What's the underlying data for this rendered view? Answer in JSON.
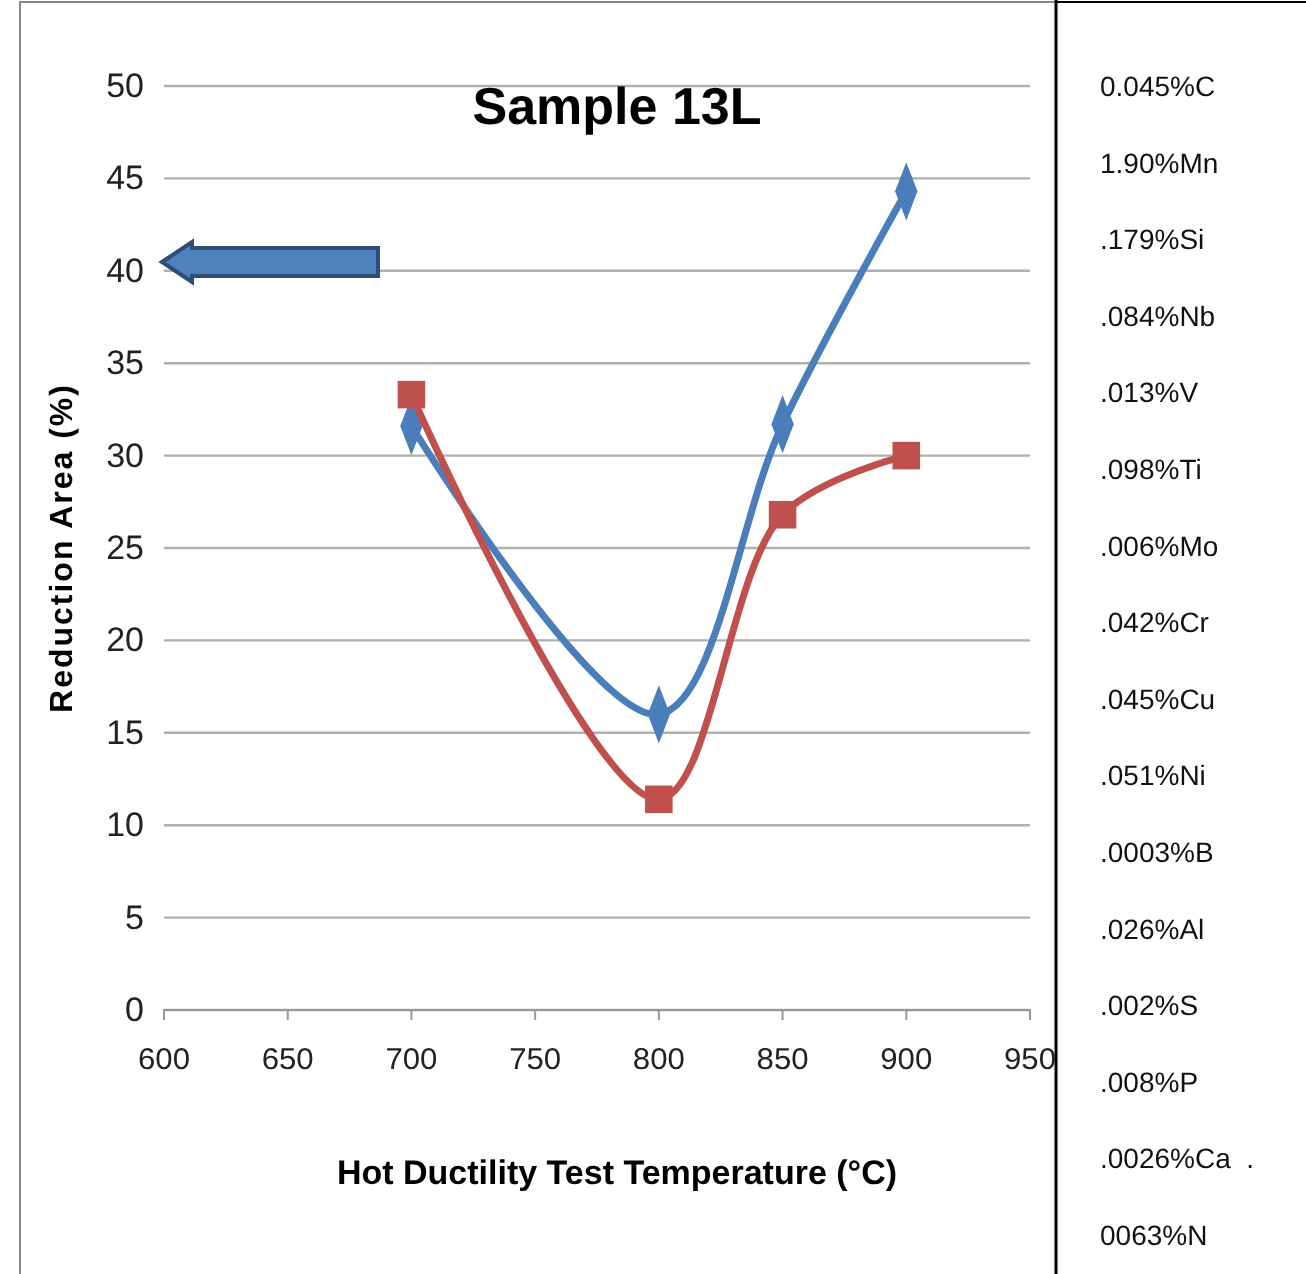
{
  "chart_data": {
    "type": "line",
    "title": "Sample 13L",
    "xlabel": "Hot Ductility Test Temperature (°C)",
    "ylabel": "Reduction Area (%)",
    "x": [
      700,
      800,
      850,
      900
    ],
    "series": [
      {
        "color": "#4a7ebb",
        "marker": "diamond",
        "values": [
          31.6,
          16,
          31.7,
          44.3
        ]
      },
      {
        "color": "#c0504d",
        "marker": "square",
        "values": [
          33.3,
          11.4,
          26.8,
          30
        ]
      }
    ],
    "xlim": [
      600,
      950
    ],
    "xticks": [
      600,
      650,
      700,
      750,
      800,
      850,
      900,
      950
    ],
    "ylim": [
      0,
      50
    ],
    "yticks": [
      0,
      5,
      10,
      15,
      20,
      25,
      30,
      35,
      40,
      45,
      50
    ],
    "grid": "y",
    "line_style": "solid",
    "annotations": [
      "0.045%C",
      "1.90%Mn",
      ".179%Si",
      ".084%Nb",
      ".013%V",
      ".098%Ti",
      ".006%Mo",
      ".042%Cr",
      ".045%Cu",
      ".051%Ni",
      ".0003%B",
      ".026%Al",
      ".002%S",
      ".008%P",
      ".0026%Ca  .",
      "0063%N"
    ]
  }
}
